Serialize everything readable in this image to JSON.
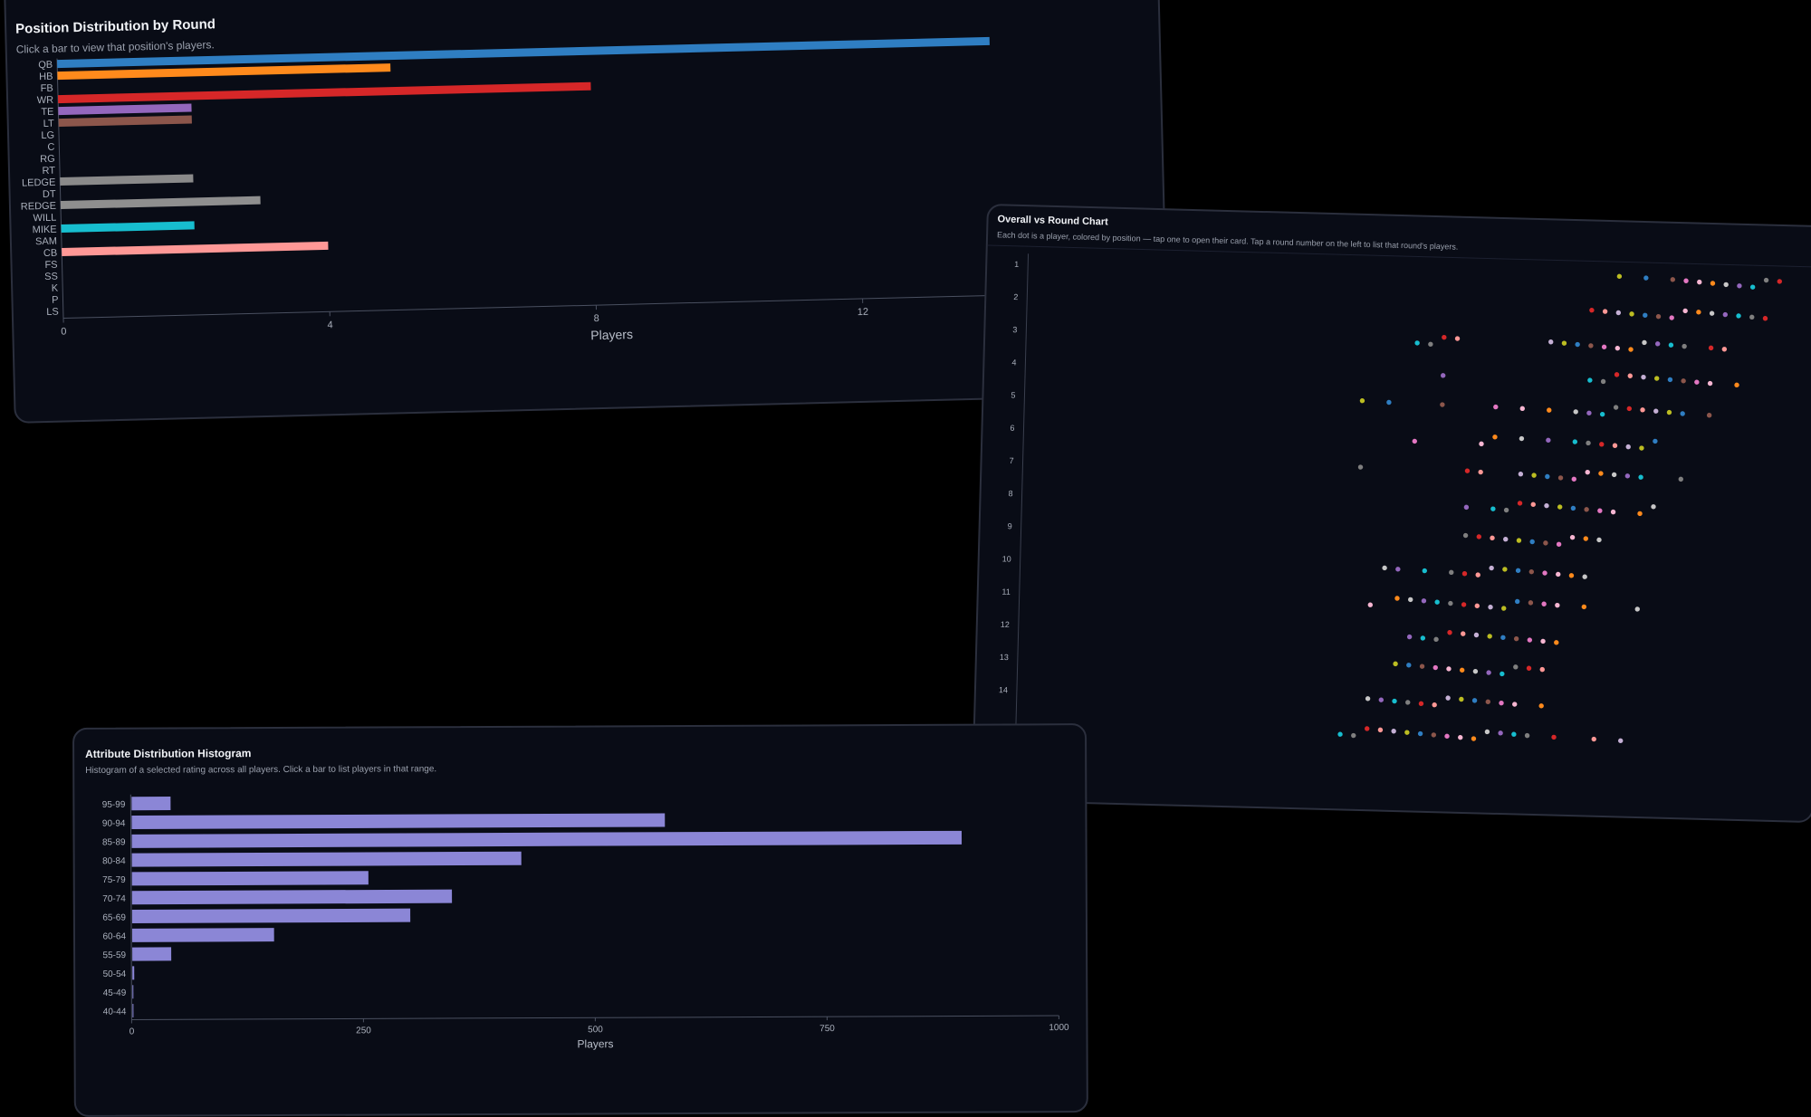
{
  "cards": {
    "position": {
      "title": "Position Distribution by Round",
      "subtitle": "Click a bar to view that position's players."
    },
    "scatter": {
      "title": "Overall vs Round Chart",
      "subtitle": "Each dot is a player, colored by position — tap one to open their card. Tap a round number on the left to list that round's players."
    },
    "histogram": {
      "title": "Attribute Distribution Histogram",
      "subtitle": "Histogram of a selected rating across all players. Click a bar to list players in that range."
    }
  },
  "chart_data": [
    {
      "type": "bar",
      "orientation": "horizontal",
      "title": "Position Distribution by Round",
      "xlabel": "Players",
      "ylabel": "",
      "xlim": [
        0,
        14
      ],
      "xticks": [
        0,
        4,
        8,
        12
      ],
      "categories": [
        "QB",
        "HB",
        "FB",
        "WR",
        "TE",
        "LT",
        "LG",
        "C",
        "RG",
        "RT",
        "LEDGE",
        "DT",
        "REDGE",
        "WILL",
        "MIKE",
        "SAM",
        "CB",
        "FS",
        "SS",
        "K",
        "P",
        "LS"
      ],
      "values": [
        14,
        5,
        0,
        8,
        2,
        2,
        0,
        0,
        0,
        0,
        2,
        0,
        3,
        0,
        2,
        0,
        4,
        0,
        0,
        0,
        0,
        0
      ],
      "colors": [
        "#2f7ec2",
        "#ff8a1c",
        "#2ca02c",
        "#d62728",
        "#9467bd",
        "#8c564b",
        "#e377c2",
        "#7f7f7f",
        "#bcbd22",
        "#17becf",
        "#8a8a8a",
        "#aec7e8",
        "#8f8f8f",
        "#98df8a",
        "#17becf",
        "#c5b0d5",
        "#ff9896",
        "#c49c94",
        "#f7b6d2",
        "#dbdb8d",
        "#9edae5",
        "#c7c7c7"
      ],
      "grid": false,
      "legend": "none"
    },
    {
      "type": "scatter",
      "title": "Overall vs Round Chart",
      "xlabel": "",
      "ylabel": "",
      "ylim": [
        1,
        15
      ],
      "yticks": [
        1,
        2,
        3,
        4,
        5,
        6,
        7,
        8,
        9,
        10,
        11,
        12,
        13,
        14
      ],
      "y_inverted": true,
      "xlim": [
        60,
        100
      ],
      "points_by_round": [
        {
          "round": 1,
          "overall": [
            87,
            89,
            91,
            92,
            93,
            94,
            95,
            96,
            97,
            98,
            99
          ]
        },
        {
          "round": 2,
          "overall": [
            85,
            86,
            87,
            88,
            89,
            90,
            91,
            92,
            93,
            94,
            95,
            96,
            97,
            98
          ]
        },
        {
          "round": 3,
          "overall": [
            72,
            73,
            74,
            75,
            82,
            83,
            84,
            85,
            86,
            87,
            88,
            89,
            90,
            91,
            92,
            94,
            95
          ]
        },
        {
          "round": 4,
          "overall": [
            74,
            85,
            86,
            87,
            88,
            89,
            90,
            91,
            92,
            93,
            94,
            96
          ]
        },
        {
          "round": 5,
          "overall": [
            68,
            70,
            74,
            78,
            80,
            82,
            84,
            85,
            86,
            87,
            88,
            89,
            90,
            91,
            92,
            94
          ]
        },
        {
          "round": 6,
          "overall": [
            72,
            77,
            78,
            80,
            82,
            84,
            85,
            86,
            87,
            88,
            89,
            90
          ]
        },
        {
          "round": 7,
          "overall": [
            68,
            76,
            77,
            80,
            81,
            82,
            83,
            84,
            85,
            86,
            87,
            88,
            89,
            92
          ]
        },
        {
          "round": 8,
          "overall": [
            76,
            78,
            79,
            80,
            81,
            82,
            83,
            84,
            85,
            86,
            87,
            89,
            90
          ]
        },
        {
          "round": 9,
          "overall": [
            76,
            77,
            78,
            79,
            80,
            81,
            82,
            83,
            84,
            85,
            86
          ]
        },
        {
          "round": 10,
          "overall": [
            70,
            71,
            73,
            75,
            76,
            77,
            78,
            79,
            80,
            81,
            82,
            83,
            84,
            85
          ]
        },
        {
          "round": 11,
          "overall": [
            69,
            71,
            72,
            73,
            74,
            75,
            76,
            77,
            78,
            79,
            80,
            81,
            82,
            83,
            85,
            89
          ]
        },
        {
          "round": 12,
          "overall": [
            72,
            73,
            74,
            75,
            76,
            77,
            78,
            79,
            80,
            81,
            82,
            83
          ]
        },
        {
          "round": 13,
          "overall": [
            71,
            72,
            73,
            74,
            75,
            76,
            77,
            78,
            79,
            80,
            81,
            82
          ]
        },
        {
          "round": 14,
          "overall": [
            69,
            70,
            71,
            72,
            73,
            74,
            75,
            76,
            77,
            78,
            79,
            80,
            82
          ]
        },
        {
          "round": 15,
          "overall": [
            67,
            68,
            69,
            70,
            71,
            72,
            73,
            74,
            75,
            76,
            77,
            78,
            79,
            80,
            81,
            83,
            86,
            88
          ]
        }
      ],
      "palette": [
        "#ff9896",
        "#e377c2",
        "#17becf",
        "#bcbd22",
        "#ff8a1c",
        "#d62728",
        "#8c564b",
        "#9467bd",
        "#c5b0d5",
        "#f7b6d2",
        "#7f7f7f",
        "#2f7ec2",
        "#c7c7c7"
      ],
      "grid": false,
      "legend": "none"
    },
    {
      "type": "bar",
      "orientation": "horizontal",
      "title": "Attribute Distribution Histogram",
      "xlabel": "Players",
      "ylabel": "",
      "xlim": [
        0,
        1000
      ],
      "xticks": [
        0,
        250,
        500,
        750,
        1000
      ],
      "categories": [
        "95-99",
        "90-94",
        "85-89",
        "80-84",
        "75-79",
        "70-74",
        "65-69",
        "60-64",
        "55-59",
        "50-54",
        "45-49",
        "40-44"
      ],
      "values": [
        42,
        575,
        895,
        420,
        255,
        345,
        300,
        153,
        42,
        2,
        1,
        1
      ],
      "color": "#8b86d6",
      "grid": false,
      "legend": "none"
    }
  ]
}
